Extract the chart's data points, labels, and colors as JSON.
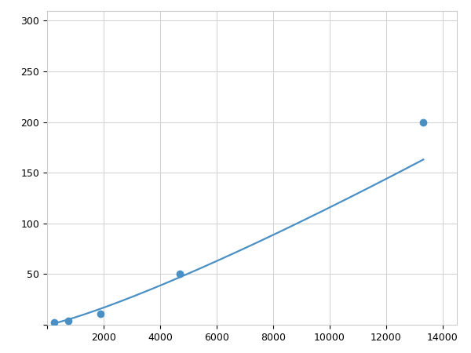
{
  "x_data": [
    250,
    750,
    1875,
    4688,
    13313
  ],
  "y_data": [
    2,
    4,
    11,
    50,
    200
  ],
  "line_color": "#4a90c4",
  "marker_color": "#4a90c4",
  "marker_size": 6,
  "marker_style": "o",
  "line_width": 1.6,
  "xlim": [
    0,
    14500
  ],
  "ylim": [
    0,
    310
  ],
  "xticks": [
    0,
    2000,
    4000,
    6000,
    8000,
    10000,
    12000,
    14000
  ],
  "yticks": [
    0,
    50,
    100,
    150,
    200,
    250,
    300
  ],
  "xtick_labels": [
    "",
    "2000",
    "4000",
    "6000",
    "8000",
    "10000",
    "12000",
    "14000"
  ],
  "ytick_labels": [
    "",
    "50",
    "100",
    "150",
    "200",
    "250",
    "300"
  ],
  "grid_color": "#d0d0d0",
  "grid_linestyle": "-",
  "grid_linewidth": 0.7,
  "background_color": "#ffffff",
  "spine_color": "#cccccc"
}
